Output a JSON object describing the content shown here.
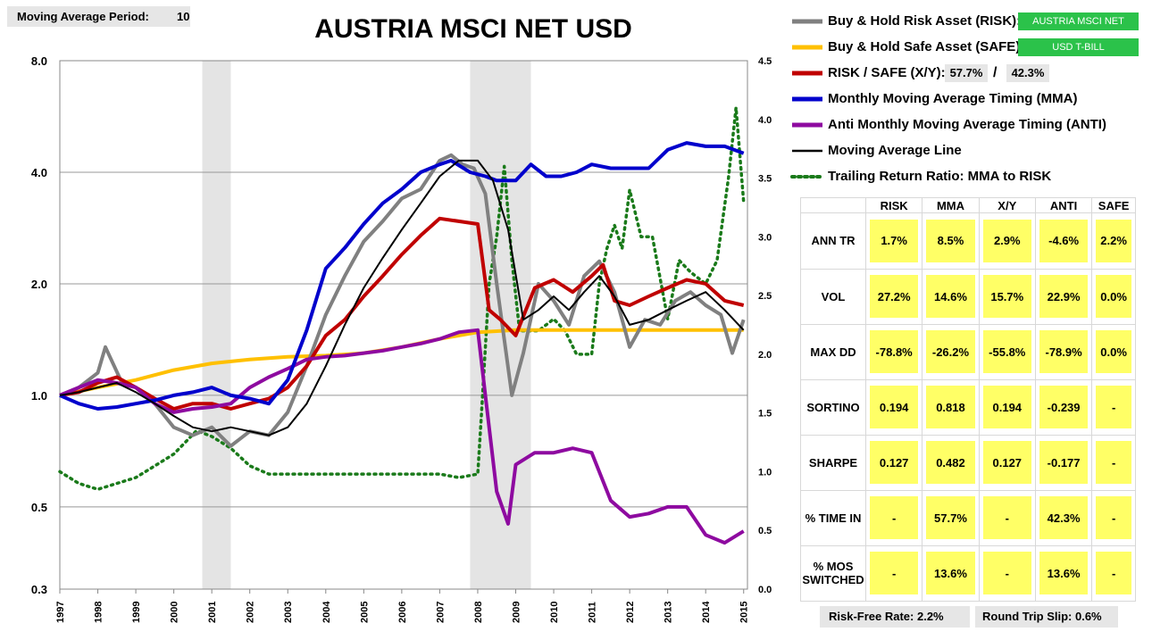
{
  "header": {
    "ma_period_label": "Moving Average Period:",
    "ma_period_value": "10",
    "title": "AUSTRIA MSCI NET USD"
  },
  "legend": [
    {
      "label": "Buy & Hold Risk Asset (RISK):",
      "color": "#808080",
      "style": "thick"
    },
    {
      "label": "Buy & Hold Safe Asset (SAFE):",
      "color": "#ffc000",
      "style": "thick"
    },
    {
      "label": "RISK / SAFE (X/Y):",
      "color": "#c00000",
      "style": "thick"
    },
    {
      "label": "Monthly Moving Average Timing (MMA)",
      "color": "#0000cc",
      "style": "thick"
    },
    {
      "label": "Anti Monthly Moving Average Timing (ANTI)",
      "color": "#8e0aa0",
      "style": "thick"
    },
    {
      "label": "Moving Average Line",
      "color": "#000000",
      "style": "thin"
    },
    {
      "label": "Trailing Return Ratio: MMA to RISK",
      "color": "#1a7a1a",
      "style": "dotted"
    }
  ],
  "legend_boxes": {
    "risk_asset": "AUSTRIA MSCI NET",
    "safe_asset": "USD T-BILL",
    "risk_pct": "57.7%",
    "slash": "/",
    "safe_pct": "42.3%"
  },
  "stats": {
    "columns": [
      "RISK",
      "MMA",
      "X/Y",
      "ANTI",
      "SAFE"
    ],
    "rows": [
      {
        "label": "ANN TR",
        "values": [
          "1.7%",
          "8.5%",
          "2.9%",
          "-4.6%",
          "2.2%"
        ]
      },
      {
        "label": "VOL",
        "values": [
          "27.2%",
          "14.6%",
          "15.7%",
          "22.9%",
          "0.0%"
        ]
      },
      {
        "label": "MAX DD",
        "values": [
          "-78.8%",
          "-26.2%",
          "-55.8%",
          "-78.9%",
          "0.0%"
        ]
      },
      {
        "label": "SORTINO",
        "values": [
          "0.194",
          "0.818",
          "0.194",
          "-0.239",
          "-"
        ]
      },
      {
        "label": "SHARPE",
        "values": [
          "0.127",
          "0.482",
          "0.127",
          "-0.177",
          "-"
        ]
      },
      {
        "label": "% TIME IN",
        "values": [
          "-",
          "57.7%",
          "-",
          "42.3%",
          "-"
        ]
      },
      {
        "label": "% MOS SWITCHED",
        "values": [
          "-",
          "13.6%",
          "-",
          "13.6%",
          "-"
        ]
      }
    ]
  },
  "footer": {
    "risk_free": "Risk-Free Rate:   2.2%",
    "slip": "Round Trip Slip:   0.6%"
  },
  "chart_data": {
    "type": "line",
    "title": "AUSTRIA MSCI NET USD",
    "x_ticks": [
      "1997",
      "1998",
      "1999",
      "2000",
      "2001",
      "2002",
      "2003",
      "2004",
      "2005",
      "2006",
      "2007",
      "2008",
      "2009",
      "2010",
      "2011",
      "2012",
      "2013",
      "2014",
      "2015"
    ],
    "y_left": {
      "scale": "log",
      "ticks": [
        "0.3",
        "0.5",
        "1.0",
        "2.0",
        "4.0",
        "8.0"
      ],
      "range": [
        0.3,
        8.0
      ]
    },
    "y_right": {
      "scale": "linear",
      "ticks": [
        "0.0",
        "0.5",
        "1.0",
        "1.5",
        "2.0",
        "2.5",
        "3.0",
        "3.5",
        "4.0",
        "4.5"
      ],
      "range": [
        0.0,
        4.5
      ]
    },
    "shaded_periods": [
      [
        2000.75,
        2001.5
      ],
      [
        2007.8,
        2009.4
      ]
    ],
    "series": [
      {
        "name": "RISK",
        "color": "#808080",
        "axis": "left",
        "x": [
          1997,
          1997.5,
          1998,
          1998.2,
          1998.6,
          1999,
          1999.5,
          2000,
          2000.5,
          2001,
          2001.5,
          2002,
          2002.5,
          2003,
          2003.5,
          2004,
          2004.5,
          2005,
          2005.5,
          2006,
          2006.5,
          2007,
          2007.3,
          2007.6,
          2007.9,
          2008.2,
          2008.5,
          2008.9,
          2009.2,
          2009.6,
          2010,
          2010.4,
          2010.8,
          2011.2,
          2011.6,
          2012,
          2012.4,
          2012.8,
          2013.2,
          2013.6,
          2014,
          2014.4,
          2014.7,
          2015
        ],
        "y": [
          1.0,
          1.05,
          1.15,
          1.35,
          1.1,
          1.05,
          0.95,
          0.82,
          0.78,
          0.82,
          0.73,
          0.8,
          0.78,
          0.9,
          1.2,
          1.65,
          2.1,
          2.6,
          2.95,
          3.4,
          3.6,
          4.3,
          4.45,
          4.2,
          4.1,
          3.5,
          2.0,
          1.0,
          1.3,
          2.0,
          1.8,
          1.55,
          2.1,
          2.3,
          1.9,
          1.35,
          1.6,
          1.55,
          1.8,
          1.9,
          1.75,
          1.65,
          1.3,
          1.6
        ]
      },
      {
        "name": "SAFE",
        "color": "#ffc000",
        "axis": "left",
        "x": [
          1997,
          1998,
          1999,
          2000,
          2001,
          2002,
          2003,
          2004,
          2005,
          2006,
          2007,
          2008,
          2009,
          2010,
          2011,
          2012,
          2013,
          2014,
          2015
        ],
        "y": [
          1.0,
          1.05,
          1.1,
          1.17,
          1.22,
          1.25,
          1.27,
          1.28,
          1.3,
          1.35,
          1.42,
          1.48,
          1.5,
          1.5,
          1.5,
          1.5,
          1.5,
          1.5,
          1.5
        ]
      },
      {
        "name": "X/Y",
        "color": "#c00000",
        "axis": "left",
        "x": [
          1997,
          1997.5,
          1998,
          1998.5,
          1999,
          1999.5,
          2000,
          2000.5,
          2001,
          2001.5,
          2002,
          2002.5,
          2003,
          2003.5,
          2004,
          2004.5,
          2005,
          2005.5,
          2006,
          2006.5,
          2007,
          2007.5,
          2008,
          2008.3,
          2008.6,
          2009,
          2009.5,
          2010,
          2010.5,
          2011,
          2011.3,
          2011.6,
          2012,
          2012.5,
          2013,
          2013.5,
          2014,
          2014.5,
          2015
        ],
        "y": [
          1.0,
          1.02,
          1.08,
          1.12,
          1.05,
          0.98,
          0.92,
          0.95,
          0.95,
          0.92,
          0.95,
          0.98,
          1.05,
          1.2,
          1.45,
          1.6,
          1.85,
          2.1,
          2.4,
          2.7,
          3.0,
          2.95,
          2.9,
          1.7,
          1.6,
          1.45,
          1.95,
          2.05,
          1.9,
          2.1,
          2.25,
          1.8,
          1.75,
          1.85,
          1.95,
          2.05,
          2.0,
          1.8,
          1.75
        ]
      },
      {
        "name": "MMA",
        "color": "#0000cc",
        "axis": "left",
        "x": [
          1997,
          1997.5,
          1998,
          1998.5,
          1999,
          1999.5,
          2000,
          2000.5,
          2001,
          2001.5,
          2002,
          2002.5,
          2003,
          2003.5,
          2004,
          2004.5,
          2005,
          2005.5,
          2006,
          2006.5,
          2007,
          2007.3,
          2007.8,
          2008.2,
          2008.5,
          2009,
          2009.4,
          2009.8,
          2010.2,
          2010.6,
          2011,
          2011.5,
          2012,
          2012.5,
          2013,
          2013.5,
          2014,
          2014.5,
          2015
        ],
        "y": [
          1.0,
          0.95,
          0.92,
          0.93,
          0.95,
          0.97,
          1.0,
          1.02,
          1.05,
          1.0,
          0.98,
          0.95,
          1.1,
          1.5,
          2.2,
          2.5,
          2.9,
          3.3,
          3.6,
          4.0,
          4.2,
          4.3,
          4.0,
          3.9,
          3.8,
          3.8,
          4.2,
          3.9,
          3.9,
          4.0,
          4.2,
          4.1,
          4.1,
          4.1,
          4.6,
          4.8,
          4.7,
          4.7,
          4.5
        ]
      },
      {
        "name": "ANTI",
        "color": "#8e0aa0",
        "axis": "left",
        "x": [
          1997,
          1997.5,
          1998,
          1998.5,
          1999,
          1999.5,
          2000,
          2000.5,
          2001,
          2001.5,
          2002,
          2002.5,
          2003,
          2003.5,
          2004,
          2004.5,
          2005,
          2005.5,
          2006,
          2006.5,
          2007,
          2007.5,
          2008,
          2008.2,
          2008.5,
          2008.8,
          2009,
          2009.5,
          2010,
          2010.5,
          2011,
          2011.5,
          2012,
          2012.5,
          2013,
          2013.5,
          2014,
          2014.5,
          2015
        ],
        "y": [
          1.0,
          1.05,
          1.1,
          1.08,
          1.05,
          0.95,
          0.9,
          0.92,
          0.93,
          0.95,
          1.05,
          1.12,
          1.18,
          1.25,
          1.27,
          1.28,
          1.3,
          1.32,
          1.35,
          1.38,
          1.42,
          1.48,
          1.5,
          1.0,
          0.55,
          0.45,
          0.65,
          0.7,
          0.7,
          0.72,
          0.7,
          0.52,
          0.47,
          0.48,
          0.5,
          0.5,
          0.42,
          0.4,
          0.43
        ]
      },
      {
        "name": "Moving Average Line",
        "color": "#000000",
        "axis": "left",
        "x": [
          1997,
          1997.5,
          1998,
          1998.5,
          1999,
          1999.5,
          2000,
          2000.5,
          2001,
          2001.5,
          2002,
          2002.5,
          2003,
          2003.5,
          2004,
          2004.5,
          2005,
          2005.5,
          2006,
          2006.5,
          2007,
          2007.5,
          2008,
          2008.4,
          2008.8,
          2009.2,
          2009.6,
          2010,
          2010.4,
          2010.8,
          2011.2,
          2011.6,
          2012,
          2012.5,
          2013,
          2013.5,
          2014,
          2014.5,
          2015
        ],
        "y": [
          1.0,
          1.02,
          1.05,
          1.08,
          1.02,
          0.95,
          0.88,
          0.82,
          0.8,
          0.82,
          0.8,
          0.78,
          0.82,
          0.95,
          1.2,
          1.55,
          1.95,
          2.35,
          2.8,
          3.3,
          3.9,
          4.3,
          4.3,
          3.8,
          2.8,
          1.6,
          1.7,
          1.85,
          1.7,
          1.9,
          2.1,
          1.85,
          1.55,
          1.6,
          1.7,
          1.8,
          1.9,
          1.7,
          1.5
        ]
      },
      {
        "name": "Trailing Return Ratio: MMA to RISK",
        "color": "#1a7a1a",
        "axis": "right",
        "x": [
          1997,
          1997.5,
          1998,
          1998.5,
          1999,
          1999.5,
          2000,
          2000.3,
          2000.6,
          2001,
          2001.5,
          2002,
          2002.5,
          2003,
          2004,
          2005,
          2006,
          2007,
          2007.5,
          2008,
          2008.1,
          2008.3,
          2008.5,
          2008.7,
          2008.9,
          2009.1,
          2009.3,
          2009.6,
          2010,
          2010.3,
          2010.6,
          2011,
          2011.2,
          2011.4,
          2011.6,
          2011.8,
          2012,
          2012.3,
          2012.6,
          2013,
          2013.3,
          2013.6,
          2014,
          2014.3,
          2014.6,
          2014.8,
          2015
        ],
        "y": [
          1.0,
          0.9,
          0.85,
          0.9,
          0.95,
          1.05,
          1.15,
          1.25,
          1.35,
          1.3,
          1.2,
          1.05,
          0.98,
          0.98,
          0.98,
          0.98,
          0.98,
          0.98,
          0.95,
          0.98,
          1.5,
          2.6,
          3.0,
          3.6,
          2.8,
          2.2,
          2.2,
          2.2,
          2.3,
          2.2,
          2.0,
          2.0,
          2.6,
          2.9,
          3.1,
          2.9,
          3.4,
          3.0,
          3.0,
          2.3,
          2.8,
          2.7,
          2.6,
          2.8,
          3.5,
          4.1,
          3.3
        ]
      }
    ]
  }
}
